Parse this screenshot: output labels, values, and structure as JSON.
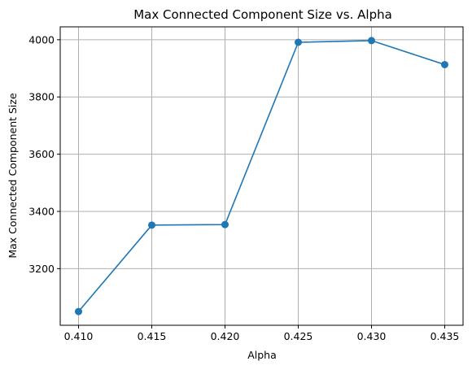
{
  "chart_data": {
    "type": "line",
    "title": "Max Connected Component Size vs. Alpha",
    "xlabel": "Alpha",
    "ylabel": "Max Connected Component Size",
    "x": [
      0.41,
      0.415,
      0.42,
      0.425,
      0.43,
      0.435
    ],
    "series": [
      {
        "values": [
          3050,
          3352,
          3354,
          3991,
          3997,
          3913
        ]
      }
    ],
    "xticks": [
      "0.410",
      "0.415",
      "0.420",
      "0.425",
      "0.430",
      "0.435"
    ],
    "yticks": [
      "3200",
      "3400",
      "3600",
      "3800",
      "4000"
    ],
    "xlim": [
      0.40875,
      0.43625
    ],
    "ylim": [
      3002,
      4045
    ],
    "grid": true,
    "marker": "circle",
    "color": "#1f77b4"
  }
}
